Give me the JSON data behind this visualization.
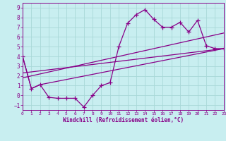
{
  "title": "",
  "xlabel": "Windchill (Refroidissement éolien,°C)",
  "bg_color": "#c8eef0",
  "line_color": "#880088",
  "xlim": [
    0,
    23
  ],
  "ylim": [
    -1.5,
    9.5
  ],
  "xticks": [
    0,
    1,
    2,
    3,
    4,
    5,
    6,
    7,
    8,
    9,
    10,
    11,
    12,
    13,
    14,
    15,
    16,
    17,
    18,
    19,
    20,
    21,
    22,
    23
  ],
  "yticks": [
    -1,
    0,
    1,
    2,
    3,
    4,
    5,
    6,
    7,
    8,
    9
  ],
  "grid_color": "#a8d8d8",
  "line1_x": [
    0,
    1,
    2,
    3,
    4,
    5,
    6,
    7,
    8,
    9,
    10,
    11,
    12,
    13,
    14,
    15,
    16,
    17,
    18,
    19,
    20,
    21,
    22,
    23
  ],
  "line1_y": [
    4.0,
    0.7,
    1.1,
    -0.2,
    -0.3,
    -0.3,
    -0.3,
    -1.2,
    0.0,
    1.0,
    1.3,
    5.0,
    7.4,
    8.3,
    8.8,
    7.8,
    7.0,
    7.0,
    7.5,
    6.5,
    7.7,
    5.1,
    4.8,
    4.8
  ],
  "line2_x": [
    0,
    1,
    2,
    23
  ],
  "line2_y": [
    4.0,
    0.7,
    1.1,
    4.8
  ],
  "line3_x": [
    0,
    23
  ],
  "line3_y": [
    1.8,
    6.4
  ],
  "line4_x": [
    0,
    23
  ],
  "line4_y": [
    2.3,
    4.8
  ],
  "marker": "+",
  "markersize": 4,
  "linewidth": 0.9
}
